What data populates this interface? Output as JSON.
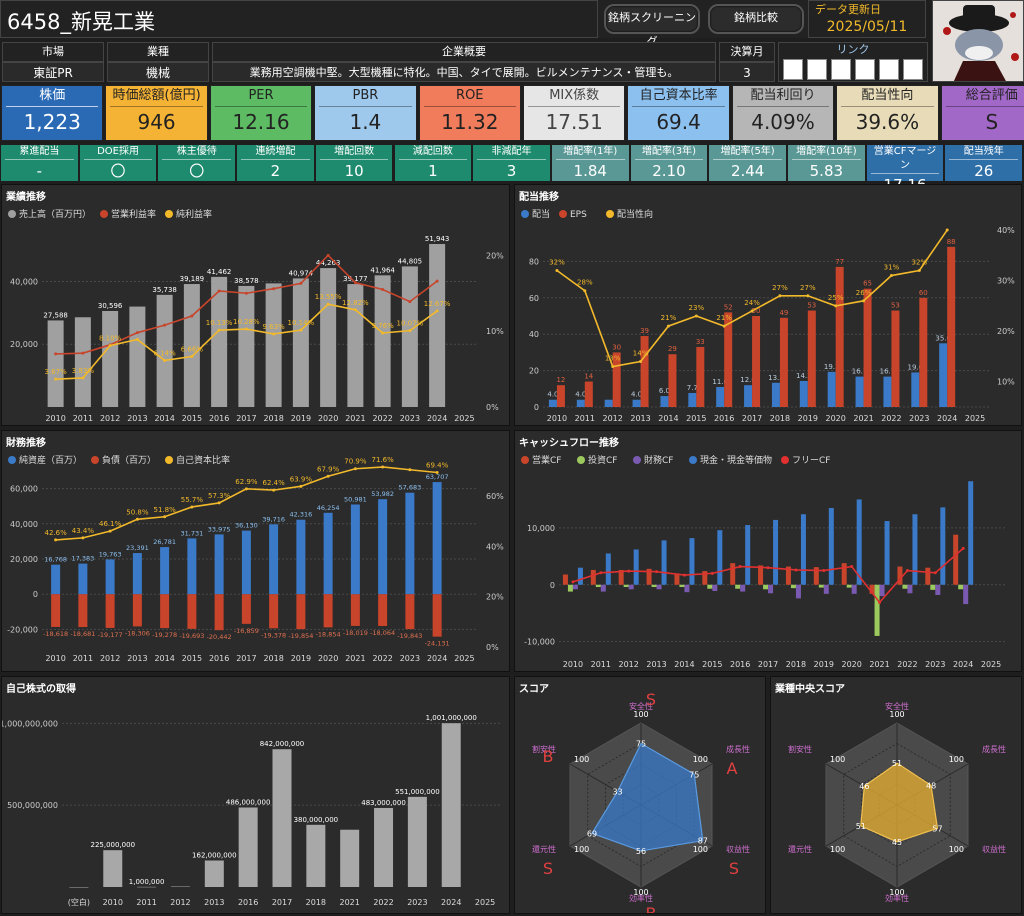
{
  "header": {
    "title": "6458_新晃工業",
    "screening_button": "銘柄スクリーニング",
    "compare_button": "銘柄比較",
    "update_label": "データ更新日",
    "update_date": "2025/05/11"
  },
  "info": {
    "market_label": "市場",
    "market": "東証PR",
    "industry_label": "業種",
    "industry": "機械",
    "summary_label": "企業概要",
    "summary": "業務用空調機中堅。大型機種に特化。中国、タイで展開。ビルメンテナンス・管理も。",
    "fiscal_label": "決算月",
    "fiscal": "3",
    "link_label": "リンク",
    "link_icons": [
      "IR BANK",
      "kabutan",
      "person-icon",
      "chart-icon",
      "minkabu-icon",
      "株主優待"
    ]
  },
  "kpis": [
    {
      "label": "株価",
      "value": "1,223",
      "bg": "#2a6ab5",
      "fg": "#ffffff"
    },
    {
      "label": "時価総額(億円)",
      "value": "946",
      "bg": "#f5b335",
      "fg": "#222222"
    },
    {
      "label": "PER",
      "value": "12.16",
      "bg": "#5dbb63",
      "fg": "#222222"
    },
    {
      "label": "PBR",
      "value": "1.4",
      "bg": "#9ec8ec",
      "fg": "#222222"
    },
    {
      "label": "ROE",
      "value": "11.32",
      "bg": "#f07c5b",
      "fg": "#222222"
    },
    {
      "label": "MIX係数",
      "value": "17.51",
      "bg": "#e6e6e6",
      "fg": "#444444"
    },
    {
      "label": "自己資本比率",
      "value": "69.4",
      "bg": "#8cc0ef",
      "fg": "#222222"
    },
    {
      "label": "配当利回り",
      "value": "4.09%",
      "bg": "#b6b6b6",
      "fg": "#222222"
    },
    {
      "label": "配当性向",
      "value": "39.6%",
      "bg": "#e8dcb8",
      "fg": "#222222"
    },
    {
      "label": "総合評価",
      "value": "S",
      "bg": "#a268c8",
      "fg": "#222222"
    }
  ],
  "minis": [
    {
      "label": "累進配当",
      "value": "-",
      "bg": "#1f8b6e"
    },
    {
      "label": "DOE採用",
      "value": "〇",
      "bg": "#1f8b6e"
    },
    {
      "label": "株主優待",
      "value": "〇",
      "bg": "#1f8b6e"
    },
    {
      "label": "連続増配",
      "value": "2",
      "bg": "#1f8b6e"
    },
    {
      "label": "増配回数",
      "value": "10",
      "bg": "#1f8b6e"
    },
    {
      "label": "減配回数",
      "value": "1",
      "bg": "#1f8b6e"
    },
    {
      "label": "非減配年",
      "value": "3",
      "bg": "#1f8b6e"
    },
    {
      "label": "増配率(1年)",
      "value": "1.84",
      "bg": "#5a9896"
    },
    {
      "label": "増配率(3年)",
      "value": "2.10",
      "bg": "#5a9896"
    },
    {
      "label": "増配率(5年)",
      "value": "2.44",
      "bg": "#5a9896"
    },
    {
      "label": "増配率(10年)",
      "value": "5.83",
      "bg": "#5a9896"
    },
    {
      "label": "営業CFマージン",
      "value": "17.16",
      "bg": "#2f6fa8"
    },
    {
      "label": "配当残年",
      "value": "26",
      "bg": "#2f6fa8"
    }
  ],
  "colors": {
    "gray": "#a0a0a0",
    "red": "#c8442b",
    "yellow": "#f2b92b",
    "blue": "#3a7ac8",
    "green": "#9bc95d",
    "purple": "#7a5ab0",
    "brightred": "#e03030"
  },
  "chart_data": [
    {
      "id": "performance",
      "type": "bar+line",
      "title": "業績推移",
      "categories": [
        "2010",
        "2011",
        "2012",
        "2013",
        "2014",
        "2015",
        "2016",
        "2017",
        "2018",
        "2019",
        "2020",
        "2021",
        "2022",
        "2023",
        "2024",
        "2025"
      ],
      "series": [
        {
          "name": "売上高（百万円）",
          "type": "bar",
          "axis": "left",
          "values": [
            27588,
            28600,
            30596,
            32000,
            35738,
            39189,
            41462,
            38578,
            39400,
            40974,
            44263,
            39177,
            41964,
            44805,
            51943,
            null
          ],
          "labels": [
            "27,588",
            "",
            "30,596",
            "",
            "35,738",
            "39,189",
            "41,462",
            "38,578",
            "",
            "40,974",
            "44,263",
            "39,177",
            "41,964",
            "44,805",
            "51,943",
            ""
          ]
        },
        {
          "name": "営業利益率",
          "type": "line",
          "axis": "right",
          "values": [
            7.0,
            7.1,
            8.2,
            9.8,
            10.8,
            12.0,
            15.3,
            15.0,
            15.6,
            16.3,
            20.0,
            16.4,
            15.5,
            13.9,
            16.6,
            null
          ]
        },
        {
          "name": "純利益率",
          "type": "line",
          "axis": "right",
          "values": [
            3.67,
            3.83,
            8.1,
            8.9,
            6.14,
            6.66,
            10.13,
            10.28,
            9.63,
            10.14,
            13.55,
            12.82,
            9.76,
            10.07,
            12.67,
            null
          ],
          "labels": [
            "3.67%",
            "3.83%",
            "8.10%",
            "",
            "6.14%",
            "6.66%",
            "10.13%",
            "10.28%",
            "9.63%",
            "10.14%",
            "13.55%",
            "12.82%",
            "9.76%",
            "10.07%",
            "12.67%",
            ""
          ]
        }
      ],
      "yticks_left": [
        "20,000",
        "40,000"
      ],
      "yticks_right": [
        "0%",
        "10%",
        "20%"
      ],
      "ylim_left": [
        0,
        58000
      ],
      "ylim_right": [
        0,
        24
      ]
    },
    {
      "id": "dividend",
      "type": "bar+line",
      "title": "配当推移",
      "categories": [
        "2010",
        "2011",
        "2012",
        "2013",
        "2014",
        "2015",
        "2016",
        "2017",
        "2018",
        "2019",
        "2020",
        "2021",
        "2022",
        "2023",
        "2024",
        "2025"
      ],
      "series": [
        {
          "name": "配当",
          "type": "bar",
          "axis": "left",
          "values": [
            4.0,
            4.0,
            4.0,
            4.0,
            6.0,
            7.7,
            11.0,
            12.0,
            13.3,
            14.3,
            19.3,
            16.7,
            16.7,
            19.0,
            35.0,
            null
          ],
          "labels": [
            "4.0",
            "4.0",
            "",
            "4.0",
            "6.0",
            "7.7",
            "11.0",
            "12.0",
            "13.3",
            "14.3",
            "19.3",
            "16.7",
            "16.7",
            "19.0",
            "35.0",
            ""
          ]
        },
        {
          "name": "EPS",
          "type": "bar",
          "axis": "left",
          "values": [
            12,
            14,
            30,
            39,
            29,
            33,
            52,
            50,
            49,
            53,
            77,
            65,
            53,
            60,
            88,
            null
          ],
          "labels": [
            "12",
            "14",
            "30",
            "39",
            "29",
            "33",
            "52",
            "50",
            "49",
            "53",
            "77",
            "65",
            "53",
            "60",
            "88",
            ""
          ]
        },
        {
          "name": "配当性向",
          "type": "line",
          "axis": "right",
          "values": [
            32,
            28,
            13,
            14,
            21,
            23,
            21,
            24,
            27,
            27,
            25,
            26,
            31,
            32,
            40,
            null
          ],
          "labels": [
            "32%",
            "28%",
            "13%",
            "14%",
            "21%",
            "23%",
            "21%",
            "24%",
            "27%",
            "27%",
            "25%",
            "26%",
            "31%",
            "32%",
            "",
            ""
          ]
        }
      ],
      "yticks_left": [
        "0",
        "20",
        "40",
        "60",
        "80"
      ],
      "yticks_right": [
        "10%",
        "20%",
        "30%",
        "40%"
      ],
      "ylim_left": [
        0,
        100
      ],
      "ylim_right": [
        5,
        41
      ]
    },
    {
      "id": "finance",
      "type": "bar+line",
      "title": "財務推移",
      "categories": [
        "2010",
        "2011",
        "2012",
        "2013",
        "2014",
        "2015",
        "2016",
        "2017",
        "2018",
        "2019",
        "2020",
        "2021",
        "2022",
        "2023",
        "2024",
        "2025"
      ],
      "series": [
        {
          "name": "純資産（百万）",
          "type": "bar",
          "axis": "left",
          "values": [
            16768,
            17383,
            19763,
            23391,
            26781,
            31731,
            33975,
            36130,
            39716,
            42316,
            46254,
            50981,
            53982,
            57683,
            63707,
            null
          ],
          "labels": [
            "16,768",
            "17,383",
            "19,763",
            "23,391",
            "26,781",
            "31,731",
            "33,975",
            "36,130",
            "39,716",
            "42,316",
            "46,254",
            "50,981",
            "53,982",
            "57,683",
            "63,707",
            ""
          ]
        },
        {
          "name": "負債（百万）",
          "type": "bar",
          "axis": "left",
          "values": [
            -18618,
            -18681,
            -19177,
            -18306,
            -19278,
            -19693,
            -20442,
            -16859,
            -19378,
            -19854,
            -18854,
            -18019,
            -18064,
            -19843,
            -24131,
            null
          ],
          "labels": [
            "-18,618",
            "-18,681",
            "-19,177",
            "-18,306",
            "-19,278",
            "-19,693",
            "-20,442",
            "-16,859",
            "-19,378",
            "-19,854",
            "-18,854",
            "-18,019",
            "-18,064",
            "-19,843",
            "-24,131",
            ""
          ]
        },
        {
          "name": "自己資本比率",
          "type": "line",
          "axis": "right",
          "values": [
            42.6,
            43.4,
            46.1,
            50.8,
            51.8,
            55.7,
            57.3,
            62.9,
            62.4,
            63.9,
            67.9,
            70.9,
            71.6,
            70.5,
            69.4,
            null
          ],
          "labels": [
            "42.6%",
            "43.4%",
            "46.1%",
            "50.8%",
            "51.8%",
            "55.7%",
            "57.3%",
            "62.9%",
            "62.4%",
            "63.9%",
            "67.9%",
            "70.9%",
            "71.6%",
            "",
            "69.4%",
            ""
          ]
        }
      ],
      "yticks_left": [
        "-20,000",
        "0",
        "20,000",
        "40,000",
        "60,000"
      ],
      "yticks_right": [
        "0%",
        "20%",
        "40%",
        "60%"
      ],
      "ylim_left": [
        -30000,
        70000
      ],
      "ylim_right": [
        0,
        70
      ]
    },
    {
      "id": "cashflow",
      "type": "bar+line",
      "title": "キャッシュフロー推移",
      "categories": [
        "2010",
        "2011",
        "2012",
        "2013",
        "2014",
        "2015",
        "2016",
        "2017",
        "2018",
        "2019",
        "2020",
        "2021",
        "2022",
        "2023",
        "2024",
        "2025"
      ],
      "series": [
        {
          "name": "営業CF",
          "type": "bar",
          "values": [
            1800,
            2600,
            2600,
            2800,
            2000,
            2400,
            3800,
            3400,
            3200,
            3100,
            3800,
            -1600,
            3200,
            3000,
            8800,
            null
          ]
        },
        {
          "name": "投資CF",
          "type": "bar",
          "values": [
            -1200,
            -400,
            -400,
            -400,
            -400,
            -700,
            -700,
            -800,
            -600,
            -500,
            -500,
            -9000,
            -700,
            -900,
            -800,
            null
          ]
        },
        {
          "name": "財務CF",
          "type": "bar",
          "values": [
            -800,
            -1200,
            -800,
            -800,
            -1300,
            -1100,
            -1200,
            -1500,
            -2400,
            -1600,
            -1600,
            -2000,
            -1500,
            -1800,
            -3400,
            null
          ]
        },
        {
          "name": "現金・現金等価物",
          "type": "bar",
          "values": [
            3000,
            5500,
            6200,
            7800,
            8200,
            9600,
            10500,
            11400,
            12400,
            13500,
            15000,
            11200,
            12400,
            13600,
            18200,
            null
          ]
        },
        {
          "name": "フリーCF",
          "type": "line",
          "values": [
            500,
            2100,
            2400,
            2300,
            1700,
            2000,
            3200,
            3000,
            2600,
            2500,
            3200,
            -3100,
            2500,
            2100,
            6400,
            null
          ]
        }
      ],
      "yticks_left": [
        "-10,000",
        "0",
        "10,000"
      ],
      "ylim_left": [
        -12000,
        20000
      ]
    },
    {
      "id": "buyback",
      "type": "bar",
      "title": "自己株式の取得",
      "categories": [
        "(空白)",
        "2010",
        "2011",
        "2012",
        "2013",
        "2016",
        "2017",
        "2018",
        "2021",
        "2022",
        "2023",
        "2024",
        "2025"
      ],
      "values": [
        0,
        225000000,
        1000000,
        3000000,
        162000000,
        486000000,
        842000000,
        380000000,
        350000000,
        483000000,
        551000000,
        1001000000,
        null
      ],
      "labels": [
        "",
        "225,000,000",
        "1,000,000",
        "",
        "162,000,000",
        "486,000,000",
        "842,000,000",
        "380,000,000",
        "",
        "483,000,000",
        "551,000,000",
        "1,001,000,000",
        ""
      ],
      "yticks": [
        "500,000,000",
        "1,000,000,000"
      ],
      "ylim": [
        0,
        1100000000
      ]
    },
    {
      "id": "score",
      "type": "radar",
      "title": "スコア",
      "axes": [
        "安全性",
        "成長性",
        "収益性",
        "効率性",
        "還元性",
        "割安性"
      ],
      "max_label": "100",
      "values": [
        75,
        75,
        87,
        56,
        69,
        33
      ],
      "grades": [
        "S",
        "A",
        "S",
        "B",
        "S",
        "B"
      ]
    },
    {
      "id": "industry_score",
      "type": "radar",
      "title": "業種中央スコア",
      "axes": [
        "安全性",
        "成長性",
        "収益性",
        "効率性",
        "還元性",
        "割安性"
      ],
      "max_label": "100",
      "values": [
        51,
        48,
        57,
        45,
        51,
        46
      ]
    }
  ]
}
